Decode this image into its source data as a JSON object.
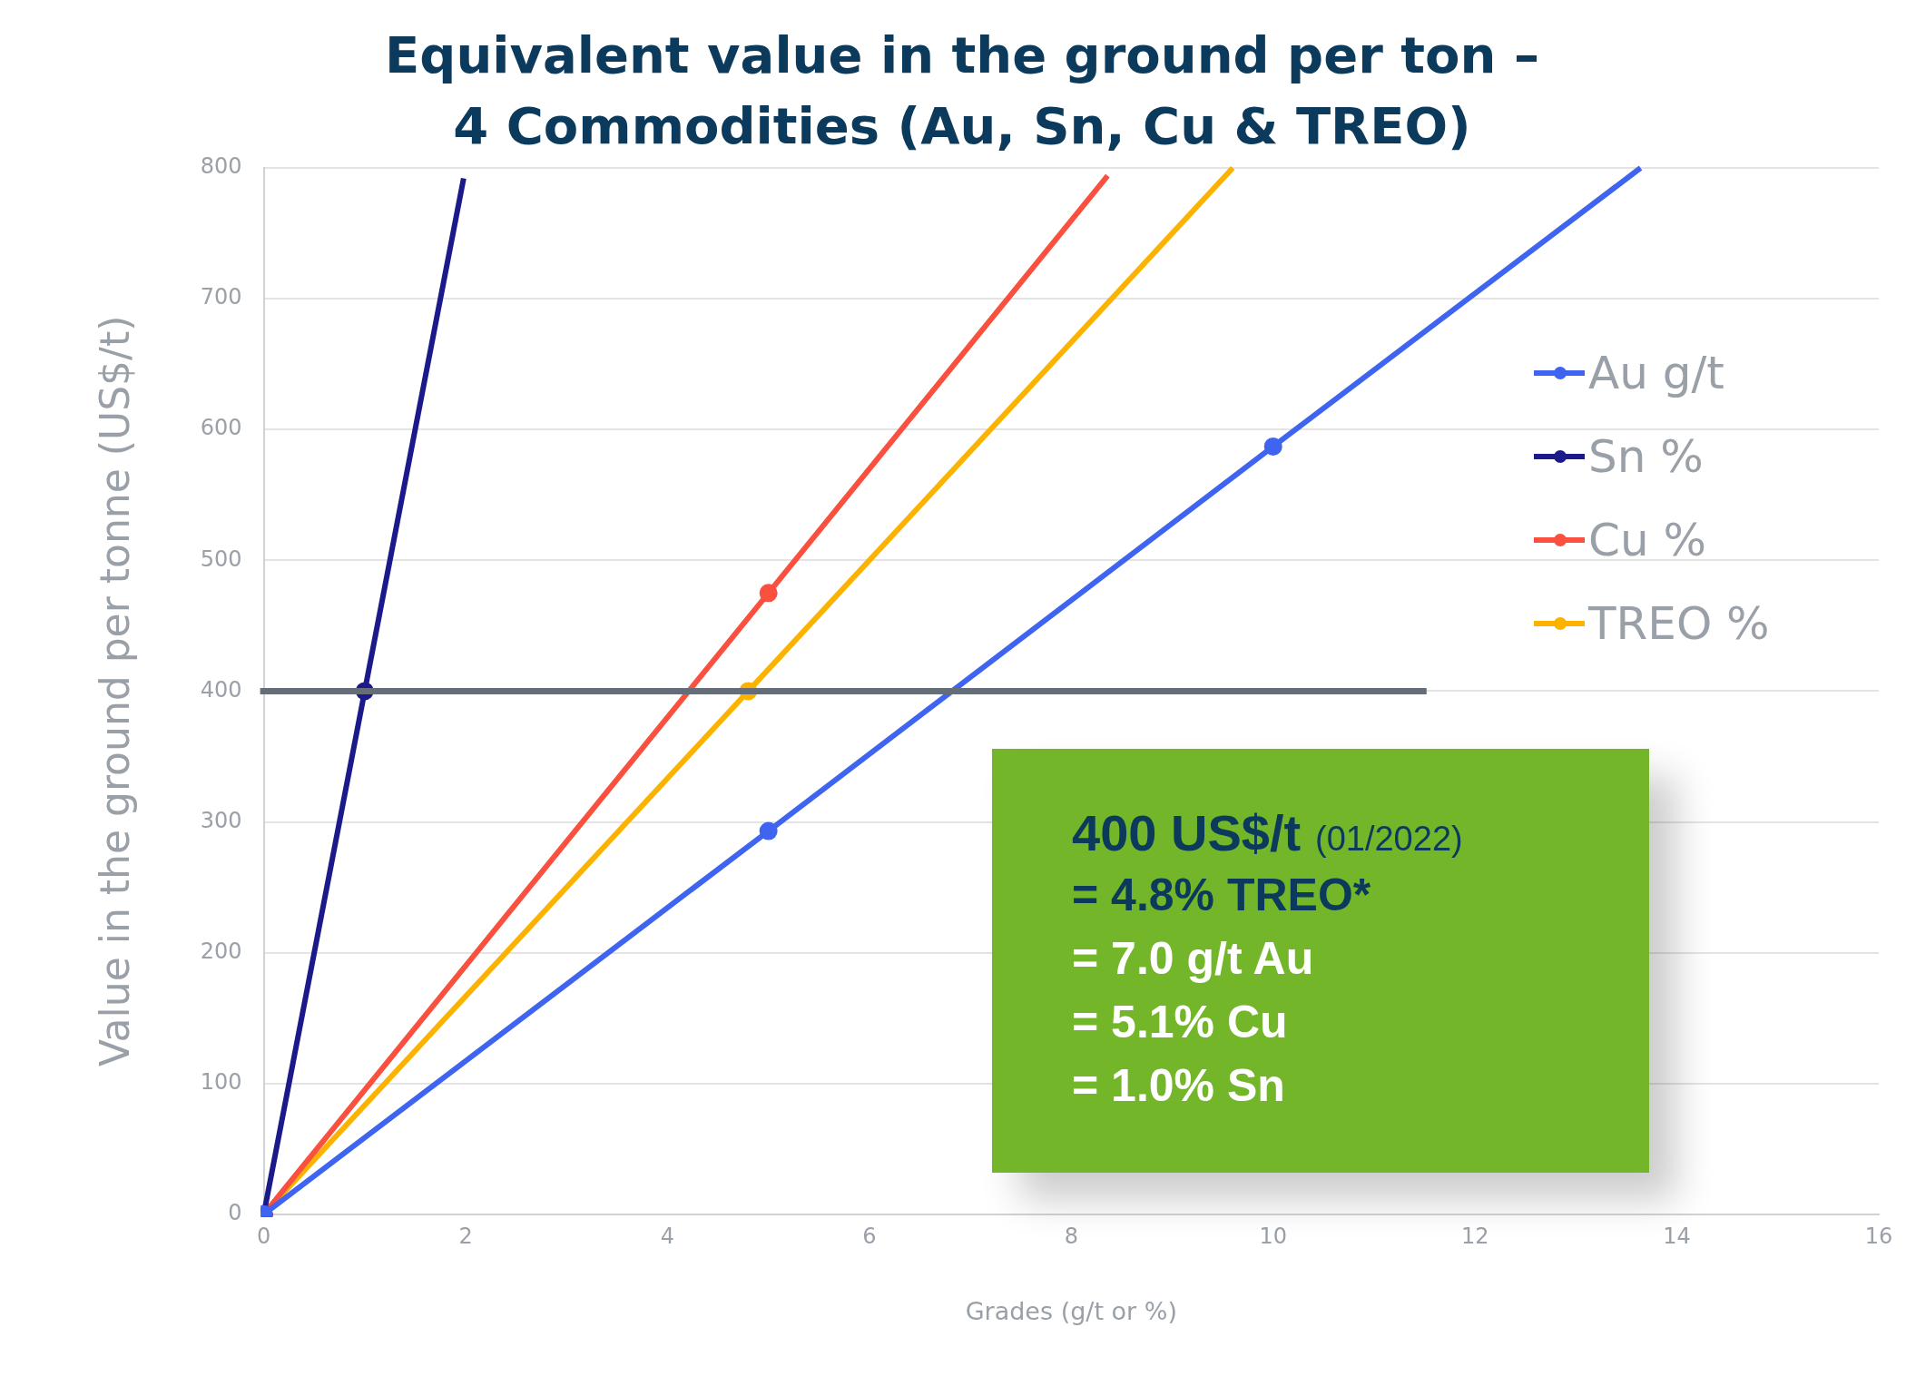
{
  "chart_data": {
    "type": "line",
    "title": "Equivalent value in the ground per ton –\n4 Commodities (Au, Sn, Cu & TREO)",
    "xlabel": "Grades (g/t or %)",
    "ylabel": "Value in the ground per tonne (US$/t)",
    "series": [
      {
        "name": "Au g/t",
        "color": "#3e64f0",
        "x": [
          0,
          5,
          10,
          13.64
        ],
        "values": [
          0,
          293,
          587,
          800
        ]
      },
      {
        "name": "Sn %",
        "color": "#1c1a8a",
        "x": [
          0,
          1,
          1.98
        ],
        "values": [
          0,
          400,
          792
        ]
      },
      {
        "name": "Cu %",
        "color": "#f9503f",
        "x": [
          0,
          5,
          8.36
        ],
        "values": [
          0,
          475,
          794
        ]
      },
      {
        "name": "TREO %",
        "color": "#fbb300",
        "x": [
          0,
          4.8,
          9.6
        ],
        "values": [
          0,
          400,
          800
        ]
      }
    ],
    "xlim": [
      0,
      16
    ],
    "xticks": [
      0,
      2,
      4,
      6,
      8,
      10,
      12,
      14,
      16
    ],
    "ylim": [
      0,
      800
    ],
    "yticks": [
      0,
      100,
      200,
      300,
      400,
      500,
      600,
      700,
      800
    ],
    "ref_lines": [
      {
        "axis": "y",
        "value": 400,
        "color": "#656d78"
      }
    ],
    "annotations": [
      "400 US$/t",
      "(01/2022)",
      "= 4.8% TREO*",
      "= 7.0 g/t Au",
      "= 5.1% Cu",
      "= 1.0% Sn"
    ],
    "grid": "y",
    "legend": "right",
    "marker": "circle",
    "line_style": "solid"
  }
}
